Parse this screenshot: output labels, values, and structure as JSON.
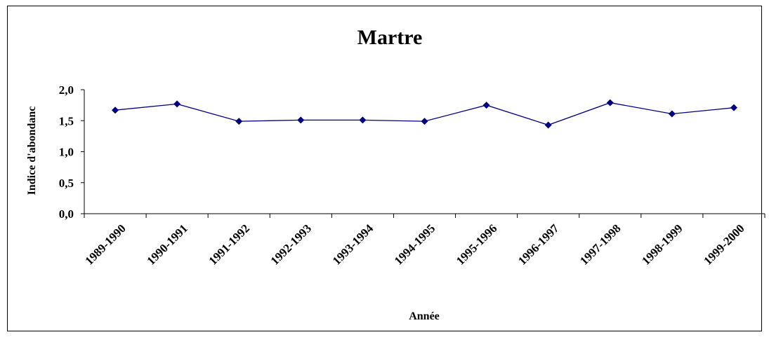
{
  "chart_data": {
    "type": "line",
    "title": "Martre",
    "xlabel": "Année",
    "ylabel": "Indice d'abondanc",
    "categories": [
      "1989-1990",
      "1990-1991",
      "1991-1992",
      "1992-1993",
      "1993-1994",
      "1994-1995",
      "1995-1996",
      "1996-1997",
      "1997-1998",
      "1998-1999",
      "1999-2000"
    ],
    "series": [
      {
        "values": [
          1.67,
          1.77,
          1.49,
          1.51,
          1.51,
          1.49,
          1.75,
          1.43,
          1.79,
          1.61,
          1.71
        ]
      }
    ],
    "ylim": [
      0,
      2
    ],
    "yticks": [
      "0,0",
      "0,5",
      "1,0",
      "1,5",
      "2,0"
    ],
    "grid": false,
    "legend": "none",
    "colors": {
      "line": "#000080",
      "marker": "#000080",
      "axis": "#000000"
    }
  }
}
